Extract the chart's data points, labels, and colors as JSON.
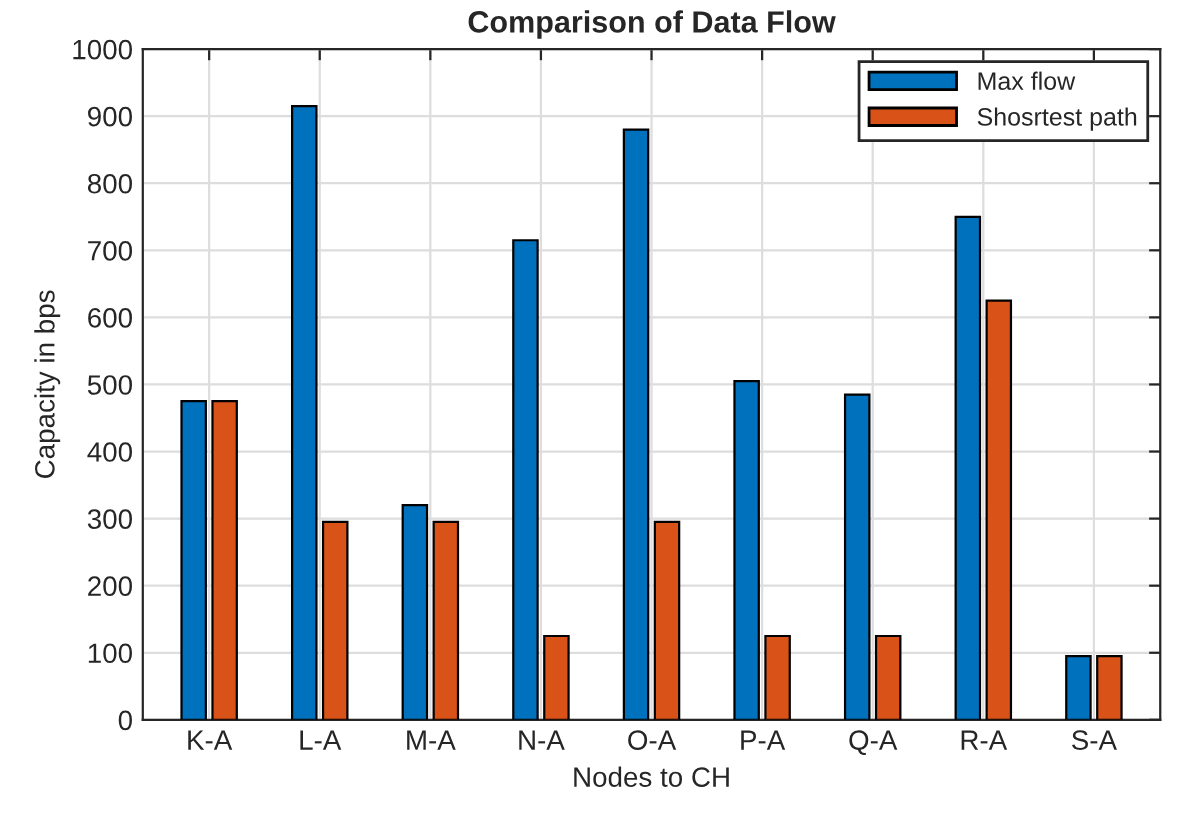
{
  "chart_data": {
    "type": "bar",
    "title": "Comparison of Data Flow",
    "xlabel": "Nodes to CH",
    "ylabel": "Capacity in bps",
    "categories": [
      "K-A",
      "L-A",
      "M-A",
      "N-A",
      "O-A",
      "P-A",
      "Q-A",
      "R-A",
      "S-A"
    ],
    "series": [
      {
        "name": "Max flow",
        "color": "#0072bd",
        "values": [
          475,
          915,
          320,
          715,
          880,
          505,
          485,
          750,
          95
        ]
      },
      {
        "name": "Shosrtest path",
        "color": "#d95319",
        "values": [
          475,
          295,
          295,
          125,
          295,
          125,
          125,
          625,
          95
        ]
      }
    ],
    "ylim": [
      0,
      1000
    ],
    "yticks": [
      0,
      100,
      200,
      300,
      400,
      500,
      600,
      700,
      800,
      900,
      1000
    ],
    "grid": true,
    "legend": "top right"
  }
}
